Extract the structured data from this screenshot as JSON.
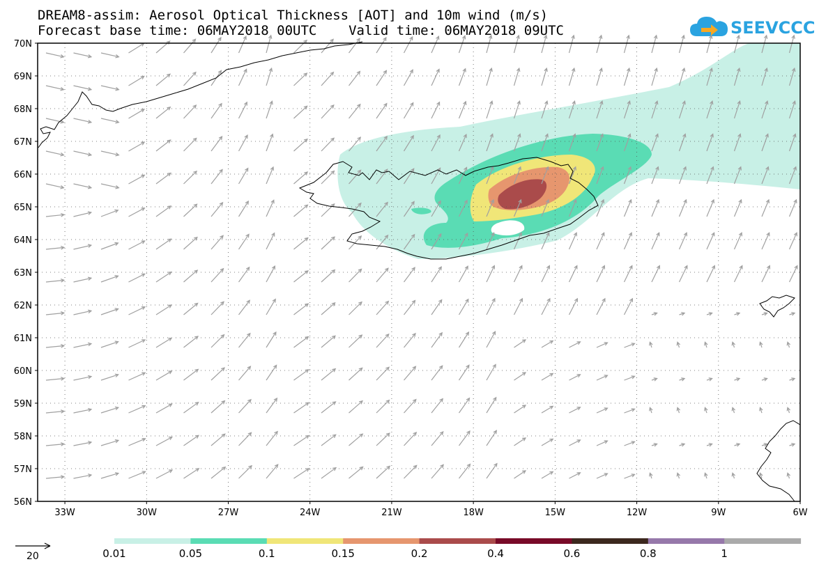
{
  "header": {
    "title_line1": "DREAM8-assim: Aerosol Optical Thickness [AOT] and 10m wind (m/s)",
    "title_line2": "Forecast base time: 06MAY2018 00UTC    Valid time: 06MAY2018 09UTC"
  },
  "logo": {
    "text": "SEEVCCC",
    "icon": "cloud-arrow-icon",
    "color": "#2aa3e0"
  },
  "map": {
    "lat_labels": [
      "70N",
      "69N",
      "68N",
      "67N",
      "66N",
      "65N",
      "64N",
      "63N",
      "62N",
      "61N",
      "60N",
      "59N",
      "58N",
      "57N",
      "56N"
    ],
    "lon_labels": [
      "33W",
      "30W",
      "27W",
      "24W",
      "21W",
      "18W",
      "15W",
      "12W",
      "9W",
      "6W"
    ],
    "lon_range": [
      -34,
      -6
    ],
    "lat_range": [
      56,
      70
    ],
    "wind_arrow_color": "#a0a0a0",
    "coastline_color": "#000000"
  },
  "legend": {
    "wind_reference_value": "20",
    "colorbar": [
      {
        "color": "#c8f0e6"
      },
      {
        "color": "#5adcb4"
      },
      {
        "color": "#f0e678"
      },
      {
        "color": "#e6966e"
      },
      {
        "color": "#aa4b4b"
      },
      {
        "color": "#780a28"
      },
      {
        "color": "#3c281e"
      },
      {
        "color": "#9678aa"
      },
      {
        "color": "#aaaaaa"
      }
    ],
    "colorbar_labels": [
      "0.01",
      "0.05",
      "0.1",
      "0.15",
      "0.2",
      "0.4",
      "0.6",
      "0.8",
      "1"
    ]
  }
}
